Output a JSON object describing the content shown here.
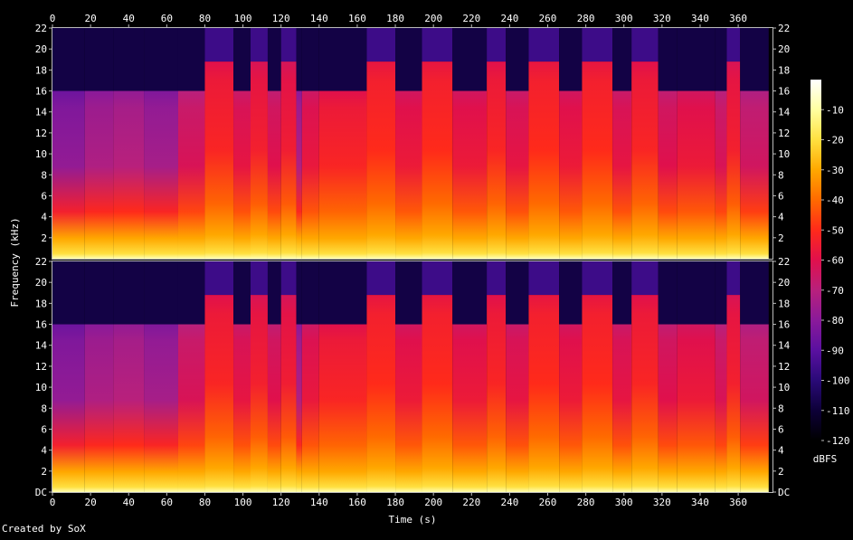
{
  "chart_data": {
    "type": "heatmap",
    "title": "",
    "xlabel": "Time (s)",
    "ylabel": "Frequency (kHz)",
    "xlim": [
      0,
      378
    ],
    "ylim": [
      0,
      22
    ],
    "x_ticks": [
      "0",
      "20",
      "40",
      "60",
      "80",
      "100",
      "120",
      "140",
      "160",
      "180",
      "200",
      "220",
      "240",
      "260",
      "280",
      "300",
      "320",
      "340",
      "360"
    ],
    "y_ticks_top": [
      "2",
      "4",
      "6",
      "8",
      "10",
      "12",
      "14",
      "16",
      "18",
      "20",
      "22"
    ],
    "y_ticks_bottom": [
      "DC",
      "2",
      "4",
      "6",
      "8",
      "10",
      "12",
      "14",
      "16",
      "18",
      "20",
      "22"
    ],
    "channels": 2,
    "colorbar": {
      "label": "dBFS",
      "ticks": [
        "-10",
        "-20",
        "-30",
        "-40",
        "-50",
        "-60",
        "-70",
        "-80",
        "-90",
        "-100",
        "-110",
        "-120"
      ],
      "range": [
        -120,
        0
      ]
    },
    "segments": [
      {
        "start": 0,
        "end": 17,
        "cutoff_khz": 16.0,
        "level_dbfs": -78
      },
      {
        "start": 17,
        "end": 32,
        "cutoff_khz": 16.0,
        "level_dbfs": -72
      },
      {
        "start": 32,
        "end": 48,
        "cutoff_khz": 16.0,
        "level_dbfs": -70
      },
      {
        "start": 48,
        "end": 66,
        "cutoff_khz": 16.0,
        "level_dbfs": -74
      },
      {
        "start": 66,
        "end": 80,
        "cutoff_khz": 16.0,
        "level_dbfs": -62
      },
      {
        "start": 80,
        "end": 95,
        "cutoff_khz": 18.8,
        "level_dbfs": -52
      },
      {
        "start": 95,
        "end": 104,
        "cutoff_khz": 16.0,
        "level_dbfs": -58
      },
      {
        "start": 104,
        "end": 113,
        "cutoff_khz": 18.8,
        "level_dbfs": -54
      },
      {
        "start": 113,
        "end": 120,
        "cutoff_khz": 16.0,
        "level_dbfs": -60
      },
      {
        "start": 120,
        "end": 128,
        "cutoff_khz": 18.8,
        "level_dbfs": -55
      },
      {
        "start": 128,
        "end": 131,
        "cutoff_khz": 16.0,
        "level_dbfs": -72
      },
      {
        "start": 131,
        "end": 140,
        "cutoff_khz": 16.0,
        "level_dbfs": -57
      },
      {
        "start": 140,
        "end": 165,
        "cutoff_khz": 16.0,
        "level_dbfs": -52
      },
      {
        "start": 165,
        "end": 180,
        "cutoff_khz": 18.8,
        "level_dbfs": -50
      },
      {
        "start": 180,
        "end": 194,
        "cutoff_khz": 16.0,
        "level_dbfs": -56
      },
      {
        "start": 194,
        "end": 210,
        "cutoff_khz": 18.8,
        "level_dbfs": -50
      },
      {
        "start": 210,
        "end": 228,
        "cutoff_khz": 16.0,
        "level_dbfs": -56
      },
      {
        "start": 228,
        "end": 238,
        "cutoff_khz": 18.8,
        "level_dbfs": -52
      },
      {
        "start": 238,
        "end": 250,
        "cutoff_khz": 16.0,
        "level_dbfs": -58
      },
      {
        "start": 250,
        "end": 266,
        "cutoff_khz": 18.8,
        "level_dbfs": -50
      },
      {
        "start": 266,
        "end": 278,
        "cutoff_khz": 16.0,
        "level_dbfs": -56
      },
      {
        "start": 278,
        "end": 294,
        "cutoff_khz": 18.8,
        "level_dbfs": -50
      },
      {
        "start": 294,
        "end": 304,
        "cutoff_khz": 16.0,
        "level_dbfs": -58
      },
      {
        "start": 304,
        "end": 318,
        "cutoff_khz": 18.8,
        "level_dbfs": -52
      },
      {
        "start": 318,
        "end": 328,
        "cutoff_khz": 16.0,
        "level_dbfs": -60
      },
      {
        "start": 328,
        "end": 348,
        "cutoff_khz": 16.0,
        "level_dbfs": -56
      },
      {
        "start": 348,
        "end": 354,
        "cutoff_khz": 16.0,
        "level_dbfs": -62
      },
      {
        "start": 354,
        "end": 361,
        "cutoff_khz": 18.8,
        "level_dbfs": -54
      },
      {
        "start": 361,
        "end": 376,
        "cutoff_khz": 16.0,
        "level_dbfs": -64
      }
    ],
    "low_band_level_dbfs": -30,
    "colors": {
      "background": "#000000",
      "text": "#ffffff",
      "axis": "#bbbbbb",
      "scale": [
        "#000000",
        "#0d0038",
        "#2a0a78",
        "#5a10a0",
        "#8a1a9a",
        "#b8207c",
        "#e0104c",
        "#ff2a1a",
        "#ff6a00",
        "#ffa800",
        "#ffe040",
        "#ffffa0",
        "#ffffff"
      ]
    }
  },
  "footer": "Created by SoX"
}
